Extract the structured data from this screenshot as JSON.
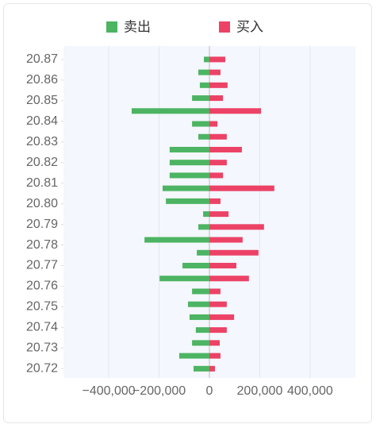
{
  "chart_data": {
    "type": "bar",
    "orientation": "horizontal",
    "y": [
      20.87,
      20.86375,
      20.8575,
      20.85125,
      20.845,
      20.83875,
      20.8325,
      20.82625,
      20.82,
      20.81375,
      20.8075,
      20.80125,
      20.795,
      20.78875,
      20.7825,
      20.77625,
      20.77,
      20.76375,
      20.7575,
      20.75125,
      20.745,
      20.73875,
      20.7325,
      20.72625,
      20.72
    ],
    "series": [
      {
        "name": "卖出",
        "color": "#4cb462",
        "values": [
          -22000,
          -44000,
          -38000,
          -69000,
          -309000,
          -69000,
          -44000,
          -158000,
          -158000,
          -158000,
          -186000,
          -173000,
          -25000,
          -44000,
          -258000,
          -50000,
          -107000,
          -198000,
          -69000,
          -85000,
          -79000,
          -54000,
          -69000,
          -120000,
          -63000
        ]
      },
      {
        "name": "买入",
        "color": "#ec4266",
        "values": [
          63000,
          44000,
          72000,
          54000,
          205000,
          32000,
          69000,
          129000,
          69000,
          54000,
          258000,
          44000,
          76000,
          217000,
          132000,
          195000,
          107000,
          157000,
          44000,
          69000,
          98000,
          69000,
          41000,
          44000,
          22000
        ]
      }
    ],
    "xlim": [
      -580000,
      580000
    ],
    "xticks": [
      {
        "value": -400000,
        "label": "−400,000"
      },
      {
        "value": -200000,
        "label": "−200,000"
      },
      0,
      {
        "value": 200000,
        "label": "200,000"
      },
      {
        "value": 400000,
        "label": "400,000"
      }
    ],
    "ylim": [
      20.7155,
      20.8765
    ],
    "yticks": [
      20.87,
      20.86,
      20.85,
      20.84,
      20.83,
      20.82,
      20.81,
      {
        "value": 20.8,
        "label": "20.80"
      },
      20.79,
      20.78,
      20.77,
      20.76,
      20.75,
      20.74,
      20.73,
      20.72
    ],
    "grid": true
  }
}
